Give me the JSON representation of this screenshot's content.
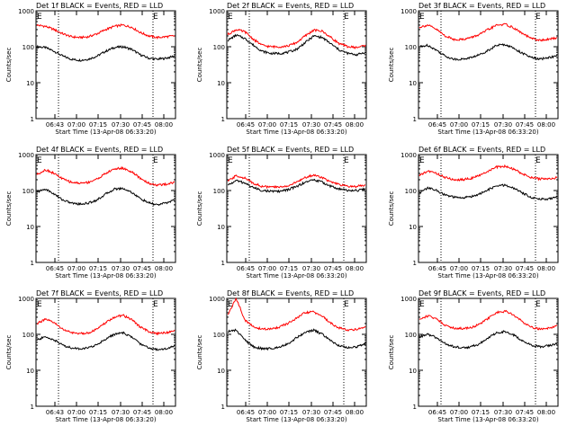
{
  "figure": {
    "ylabel": "Counts/sec",
    "xlabel": "Start Time (13-Apr-08 06:33:20)",
    "colors": {
      "events": "#000000",
      "lld": "#ff0000",
      "axes": "#000000"
    },
    "marker_E": "E"
  },
  "chart_data": [
    {
      "type": "line",
      "title": "Det 1f BLACK = Events, RED = LLD",
      "x_ticks": [
        "06:43",
        "07:00",
        "07:15",
        "07:30",
        "07:45",
        "08:00"
      ],
      "y_ticks": [
        "1",
        "10",
        "100",
        "1000"
      ],
      "ylim": [
        1,
        1000
      ],
      "yscale": "log",
      "series": [
        {
          "name": "BLACK = Events",
          "values": [
            100,
            95,
            75,
            55,
            45,
            42,
            45,
            55,
            75,
            95,
            100,
            85,
            60,
            48,
            45,
            48,
            55
          ]
        },
        {
          "name": "RED = LLD",
          "values": [
            400,
            370,
            300,
            230,
            190,
            180,
            190,
            230,
            300,
            370,
            400,
            350,
            250,
            200,
            180,
            190,
            200
          ]
        }
      ]
    },
    {
      "type": "line",
      "title": "Det 2f BLACK = Events, RED = LLD",
      "x_ticks": [
        "06:45",
        "07:00",
        "07:15",
        "07:30",
        "07:45",
        "08:00"
      ],
      "y_ticks": [
        "1",
        "10",
        "100",
        "1000"
      ],
      "ylim": [
        1,
        1000
      ],
      "yscale": "log",
      "series": [
        {
          "name": "BLACK = Events",
          "values": [
            150,
            210,
            170,
            110,
            75,
            65,
            65,
            70,
            85,
            130,
            200,
            180,
            120,
            80,
            65,
            60,
            70
          ]
        },
        {
          "name": "RED = LLD",
          "values": [
            220,
            300,
            260,
            160,
            110,
            100,
            100,
            105,
            130,
            200,
            290,
            270,
            180,
            120,
            100,
            95,
            110
          ]
        }
      ]
    },
    {
      "type": "line",
      "title": "Det 3f BLACK = Events, RED = LLD",
      "x_ticks": [
        "06:45",
        "07:00",
        "07:15",
        "07:30",
        "07:45",
        "08:00"
      ],
      "y_ticks": [
        "1",
        "10",
        "100",
        "1000"
      ],
      "ylim": [
        1,
        1000
      ],
      "yscale": "log",
      "series": [
        {
          "name": "BLACK = Events",
          "values": [
            100,
            110,
            80,
            55,
            45,
            45,
            50,
            60,
            80,
            110,
            115,
            90,
            65,
            50,
            45,
            50,
            55
          ]
        },
        {
          "name": "RED = LLD",
          "values": [
            350,
            400,
            300,
            200,
            160,
            160,
            180,
            220,
            300,
            400,
            420,
            330,
            230,
            170,
            150,
            160,
            180
          ]
        }
      ]
    },
    {
      "type": "line",
      "title": "Det 4f BLACK = Events, RED = LLD",
      "x_ticks": [
        "06:45",
        "07:00",
        "07:15",
        "07:30",
        "07:45",
        "08:00"
      ],
      "y_ticks": [
        "1",
        "10",
        "100",
        "1000"
      ],
      "ylim": [
        1,
        1000
      ],
      "yscale": "log",
      "series": [
        {
          "name": "BLACK = Events",
          "values": [
            90,
            110,
            80,
            55,
            45,
            42,
            45,
            55,
            80,
            110,
            115,
            90,
            60,
            45,
            40,
            45,
            55
          ]
        },
        {
          "name": "RED = LLD",
          "values": [
            280,
            380,
            300,
            210,
            170,
            160,
            170,
            210,
            300,
            400,
            420,
            330,
            220,
            160,
            140,
            150,
            170
          ]
        }
      ]
    },
    {
      "type": "line",
      "title": "Det 5f BLACK = Events, RED = LLD",
      "x_ticks": [
        "06:45",
        "07:00",
        "07:15",
        "07:30",
        "07:45",
        "08:00"
      ],
      "y_ticks": [
        "1",
        "10",
        "100",
        "1000"
      ],
      "ylim": [
        1,
        1000
      ],
      "yscale": "log",
      "series": [
        {
          "name": "BLACK = Events",
          "values": [
            140,
            190,
            160,
            120,
            100,
            95,
            95,
            105,
            130,
            170,
            200,
            170,
            130,
            110,
            100,
            100,
            110
          ]
        },
        {
          "name": "RED = LLD",
          "values": [
            180,
            260,
            220,
            160,
            130,
            125,
            125,
            135,
            170,
            230,
            270,
            230,
            170,
            145,
            130,
            130,
            145
          ]
        }
      ]
    },
    {
      "type": "line",
      "title": "Det 6f BLACK = Events, RED = LLD",
      "x_ticks": [
        "06:45",
        "07:00",
        "07:15",
        "07:30",
        "07:45",
        "08:00"
      ],
      "y_ticks": [
        "1",
        "10",
        "100",
        "1000"
      ],
      "ylim": [
        1,
        1000
      ],
      "yscale": "log",
      "series": [
        {
          "name": "BLACK = Events",
          "values": [
            85,
            120,
            100,
            75,
            65,
            62,
            68,
            80,
            105,
            135,
            140,
            115,
            85,
            65,
            58,
            58,
            65
          ]
        },
        {
          "name": "RED = LLD",
          "values": [
            260,
            350,
            300,
            230,
            200,
            200,
            220,
            260,
            350,
            450,
            470,
            390,
            290,
            230,
            210,
            210,
            230
          ]
        }
      ]
    },
    {
      "type": "line",
      "title": "Det 7f BLACK = Events, RED = LLD",
      "x_ticks": [
        "06:43",
        "07:00",
        "07:15",
        "07:30",
        "07:45",
        "08:00"
      ],
      "y_ticks": [
        "1",
        "10",
        "100",
        "1000"
      ],
      "ylim": [
        1,
        1000
      ],
      "yscale": "log",
      "series": [
        {
          "name": "BLACK = Events",
          "values": [
            70,
            85,
            70,
            50,
            42,
            40,
            42,
            52,
            75,
            100,
            110,
            85,
            55,
            42,
            38,
            40,
            48
          ]
        },
        {
          "name": "RED = LLD",
          "values": [
            200,
            260,
            210,
            140,
            110,
            105,
            110,
            140,
            210,
            300,
            340,
            260,
            160,
            120,
            105,
            110,
            130
          ]
        }
      ]
    },
    {
      "type": "line",
      "title": "Det 8f BLACK = Events, RED = LLD",
      "x_ticks": [
        "06:45",
        "07:00",
        "07:15",
        "07:30",
        "07:45",
        "08:00"
      ],
      "y_ticks": [
        "1",
        "10",
        "100",
        "1000"
      ],
      "ylim": [
        1,
        1000
      ],
      "yscale": "log",
      "series": [
        {
          "name": "BLACK = Events",
          "values": [
            120,
            130,
            70,
            45,
            40,
            40,
            45,
            55,
            80,
            115,
            130,
            100,
            65,
            48,
            42,
            45,
            55
          ]
        },
        {
          "name": "RED = LLD",
          "values": [
            350,
            1000,
            250,
            160,
            140,
            140,
            160,
            200,
            280,
            400,
            420,
            320,
            200,
            150,
            130,
            140,
            160
          ]
        }
      ]
    },
    {
      "type": "line",
      "title": "Det 9f BLACK = Events, RED = LLD",
      "x_ticks": [
        "06:45",
        "07:00",
        "07:15",
        "07:30",
        "07:45",
        "08:00"
      ],
      "y_ticks": [
        "1",
        "10",
        "100",
        "1000"
      ],
      "ylim": [
        1,
        1000
      ],
      "yscale": "log",
      "series": [
        {
          "name": "BLACK = Events",
          "values": [
            85,
            100,
            80,
            55,
            45,
            42,
            45,
            55,
            80,
            110,
            120,
            95,
            65,
            50,
            45,
            48,
            55
          ]
        },
        {
          "name": "RED = LLD",
          "values": [
            260,
            330,
            270,
            180,
            150,
            145,
            155,
            190,
            280,
            400,
            440,
            340,
            220,
            160,
            140,
            150,
            170
          ]
        }
      ]
    }
  ]
}
